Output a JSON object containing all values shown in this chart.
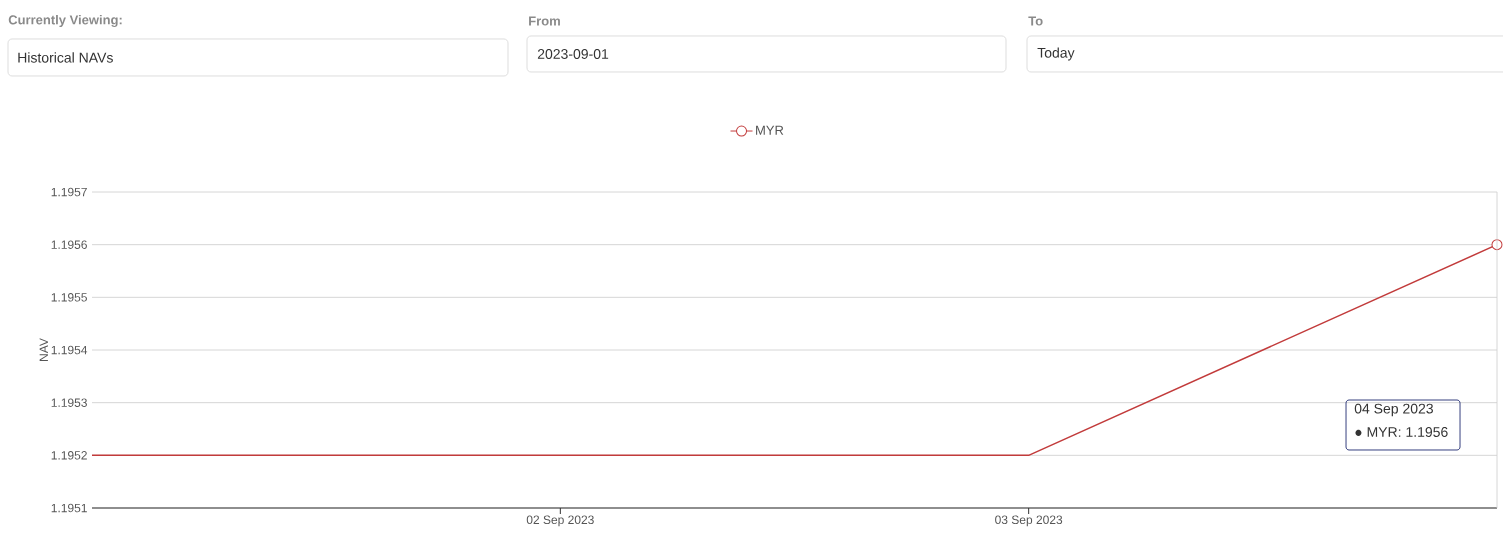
{
  "chart_data": {
    "type": "line",
    "ylabel": "NAV",
    "x": [
      "2023-09-01",
      "2023-09-02",
      "2023-09-03",
      "2023-09-04"
    ],
    "series": [
      {
        "name": "MYR",
        "color": "#c23b3b",
        "values": [
          1.1952,
          1.1952,
          1.1952,
          1.1956
        ]
      }
    ],
    "xlim": [
      "2023-09-01",
      "2023-09-04"
    ],
    "xticks": [
      {
        "value": "2023-09-02",
        "label": "02 Sep 2023"
      },
      {
        "value": "2023-09-03",
        "label": "03 Sep 2023"
      }
    ],
    "ylim": [
      1.1951,
      1.1957
    ],
    "yticks": [
      1.1951,
      1.1952,
      1.1953,
      1.1954,
      1.1955,
      1.1956,
      1.1957
    ],
    "grid": "y",
    "legend": "top",
    "line_style": "solid",
    "annotations": [
      "Currently Viewing:",
      "Historical NAVs",
      "From",
      "2023-09-01",
      "To",
      "Today",
      "04 Sep 2023",
      "● MYR: 1.1956"
    ]
  }
}
